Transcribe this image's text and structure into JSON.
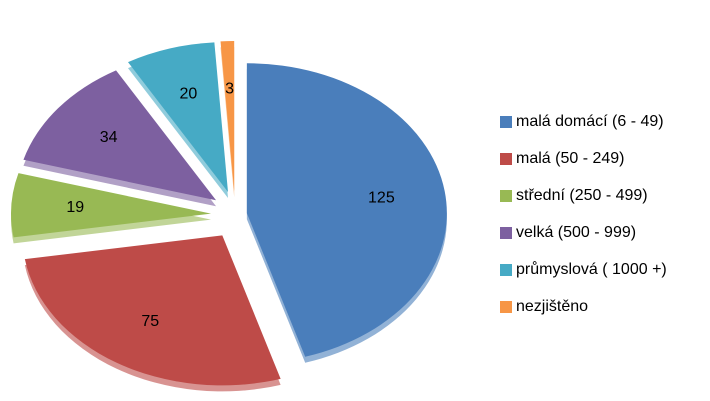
{
  "chart_data": {
    "type": "pie",
    "categories": [
      "malá domácí (6 - 49)",
      "malá (50 - 249)",
      "střední (250 - 499)",
      "velká (500 - 999)",
      "průmyslová ( 1000 +)",
      "nezjištěno"
    ],
    "values": [
      125,
      75,
      19,
      34,
      20,
      3
    ],
    "colors": [
      "#4a7ebb",
      "#be4b48",
      "#98b954",
      "#7d60a0",
      "#46aac5",
      "#f79646"
    ],
    "legend": "right"
  }
}
